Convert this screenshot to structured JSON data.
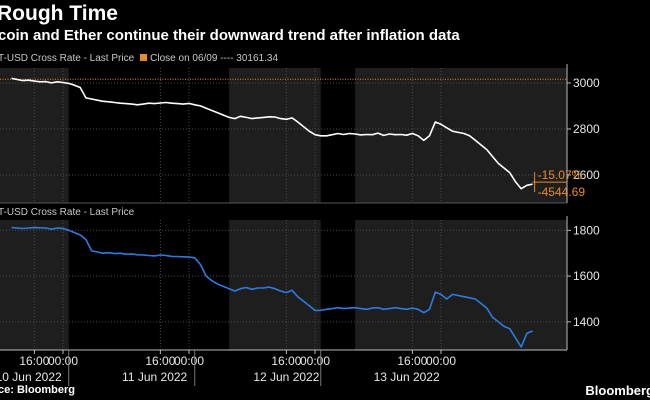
{
  "header": {
    "title": "Rough Time",
    "subtitle": "coin and Ether continue their downward trend after inflation data"
  },
  "footer": {
    "source": "ce: Bloomberg",
    "brand": "Bloomberg"
  },
  "colors": {
    "btc_line": "#ffffff",
    "eth_line": "#2e7be0",
    "accent": "#e8892a",
    "band": "#1e1e1e",
    "grid": "#4a4a4a"
  },
  "chart_data": [
    {
      "type": "line",
      "name": "btc",
      "legend": "T-USD Cross Rate - Last Price",
      "marker_legend": "Close on 06/09 ---- 30161.34",
      "reference_line": {
        "label": "Close on 06/09",
        "value": 30161.34
      },
      "annotations": {
        "change": "-15.07%",
        "last": "-4544.69"
      },
      "x_unit": "hours from 10 Jun 2022 00:00",
      "x": [
        2,
        3,
        4,
        5,
        6,
        7,
        8,
        9,
        10,
        11,
        12,
        13,
        14,
        15,
        16,
        17,
        18,
        19,
        20,
        21,
        22,
        23,
        24,
        25,
        26,
        27,
        28,
        29,
        30,
        31,
        32,
        33,
        34,
        35,
        36,
        37,
        38,
        39,
        40,
        41,
        42,
        43,
        44,
        45,
        46,
        47,
        48,
        49,
        50,
        51,
        52,
        53,
        54,
        55,
        56,
        57,
        58,
        59,
        60,
        61,
        62,
        63,
        64,
        65,
        66,
        67,
        68,
        69,
        70,
        71,
        72,
        73,
        74,
        75,
        76,
        77,
        78,
        79,
        80,
        81,
        82,
        83,
        84,
        85,
        86,
        87,
        88,
        89,
        90,
        91,
        92,
        93
      ],
      "y": [
        30200,
        30150,
        30100,
        30120,
        30080,
        30050,
        30060,
        30000,
        30050,
        30020,
        29980,
        29900,
        29800,
        29350,
        29300,
        29250,
        29200,
        29180,
        29150,
        29120,
        29100,
        29080,
        29050,
        29080,
        29120,
        29100,
        29130,
        29150,
        29120,
        29100,
        29080,
        29110,
        29050,
        29000,
        28900,
        28800,
        28700,
        28600,
        28500,
        28450,
        28550,
        28500,
        28450,
        28480,
        28500,
        28530,
        28520,
        28450,
        28420,
        28480,
        28300,
        28100,
        27900,
        27750,
        27700,
        27700,
        27750,
        27800,
        27760,
        27800,
        27780,
        27740,
        27760,
        27750,
        27820,
        27720,
        27780,
        27750,
        27760,
        27730,
        27800,
        27700,
        27500,
        27700,
        28300,
        28200,
        28050,
        27900,
        27850,
        27800,
        27700,
        27500,
        27300,
        27100,
        26800,
        26500,
        26300,
        26100,
        25700,
        25400,
        25550,
        25600
      ],
      "yticks": [
        2600,
        2800,
        3000
      ],
      "ylim": [
        24780,
        30650
      ],
      "ytick_unit_factor": 10
    },
    {
      "type": "line",
      "name": "eth",
      "legend": "T-USD Cross Rate - Last Price",
      "x_unit": "hours from 10 Jun 2022 00:00",
      "x": [
        2,
        3,
        4,
        5,
        6,
        7,
        8,
        9,
        10,
        11,
        12,
        13,
        14,
        15,
        16,
        17,
        18,
        19,
        20,
        21,
        22,
        23,
        24,
        25,
        26,
        27,
        28,
        29,
        30,
        31,
        32,
        33,
        34,
        35,
        36,
        37,
        38,
        39,
        40,
        41,
        42,
        43,
        44,
        45,
        46,
        47,
        48,
        49,
        50,
        51,
        52,
        53,
        54,
        55,
        56,
        57,
        58,
        59,
        60,
        61,
        62,
        63,
        64,
        65,
        66,
        67,
        68,
        69,
        70,
        71,
        72,
        73,
        74,
        75,
        76,
        77,
        78,
        79,
        80,
        81,
        82,
        83,
        84,
        85,
        86,
        87,
        88,
        89,
        90,
        91,
        92,
        93
      ],
      "y": [
        1812,
        1810,
        1808,
        1810,
        1812,
        1811,
        1810,
        1805,
        1810,
        1808,
        1800,
        1790,
        1780,
        1760,
        1710,
        1705,
        1700,
        1702,
        1698,
        1700,
        1695,
        1697,
        1693,
        1692,
        1690,
        1688,
        1692,
        1690,
        1686,
        1685,
        1684,
        1683,
        1680,
        1650,
        1600,
        1580,
        1565,
        1555,
        1545,
        1535,
        1545,
        1550,
        1542,
        1548,
        1548,
        1552,
        1545,
        1535,
        1528,
        1538,
        1510,
        1490,
        1470,
        1450,
        1450,
        1455,
        1458,
        1462,
        1458,
        1460,
        1462,
        1458,
        1455,
        1460,
        1462,
        1455,
        1458,
        1462,
        1458,
        1455,
        1460,
        1455,
        1440,
        1455,
        1530,
        1520,
        1500,
        1520,
        1515,
        1510,
        1505,
        1500,
        1480,
        1460,
        1420,
        1400,
        1380,
        1370,
        1330,
        1290,
        1350,
        1360
      ],
      "yticks": [
        1400,
        1600,
        1800
      ],
      "ylim": [
        1277,
        1845
      ]
    }
  ],
  "x_axis": {
    "min": 0,
    "max": 99,
    "ticks": [
      {
        "x": 6,
        "label": "16:00"
      },
      {
        "x": 11,
        "label": "00:00"
      },
      {
        "x": 28,
        "label": "16:00"
      },
      {
        "x": 33,
        "label": "00:00"
      },
      {
        "x": 50,
        "label": "16:00"
      },
      {
        "x": 55,
        "label": "00:00"
      },
      {
        "x": 72,
        "label": "16:00"
      },
      {
        "x": 77,
        "label": "00:00"
      }
    ],
    "days": [
      {
        "label": "10 Jun 2022",
        "x": 5
      },
      {
        "label": "11 Jun 2022",
        "x": 27
      },
      {
        "label": "12 Jun 2022",
        "x": 50
      },
      {
        "label": "13 Jun 2022",
        "x": 71
      }
    ],
    "shaded_bands": [
      [
        0,
        12
      ],
      [
        40,
        56
      ],
      [
        62,
        99
      ]
    ]
  }
}
